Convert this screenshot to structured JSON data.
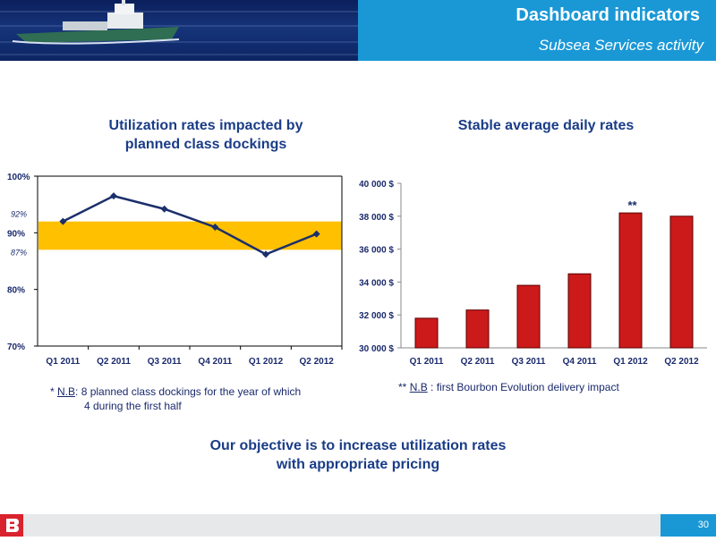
{
  "header": {
    "title": "Dashboard indicators",
    "subtitle": "Subsea Services activity"
  },
  "chart_data": [
    {
      "type": "line",
      "title": "Utilization rates impacted by planned class dockings",
      "title_lines": [
        "Utilization rates impacted by",
        "planned class dockings"
      ],
      "categories": [
        "Q1 2011",
        "Q2 2011",
        "Q3 2011",
        "Q4 2011",
        "Q1 2012",
        "Q2 2012"
      ],
      "values": [
        92,
        96.5,
        94.2,
        91,
        86.2,
        89.8
      ],
      "ylim": [
        70,
        100
      ],
      "yticks": [
        "70%",
        "80%",
        "90%",
        "100%"
      ],
      "band": {
        "low": 87,
        "high": 92,
        "low_label": "87%",
        "high_label": "92%",
        "color": "#ffc000"
      },
      "line_color": "#1b2f6b",
      "grid": false
    },
    {
      "type": "bar",
      "title": "Stable average daily rates",
      "categories": [
        "Q1 2011",
        "Q2 2011",
        "Q3 2011",
        "Q4 2011",
        "Q1 2012",
        "Q2 2012"
      ],
      "values": [
        31800,
        32300,
        33800,
        34500,
        38200,
        38000
      ],
      "ylim": [
        30000,
        40000
      ],
      "yticks": [
        "30 000 $",
        "32 000 $",
        "34 000 $",
        "36 000 $",
        "38 000 $",
        "40 000 $"
      ],
      "annotation": {
        "text": "**",
        "category": "Q1 2012"
      },
      "bar_color": "#cc1a1a",
      "grid": false
    }
  ],
  "notes": {
    "left": {
      "prefix": "* ",
      "nb": "N.B",
      "line1": ": 8 planned class dockings for the year of which",
      "line2": "4 during the first half"
    },
    "right": {
      "prefix": "** ",
      "nb": "N.B",
      "line1": " : first Bourbon Evolution delivery impact"
    }
  },
  "objective": {
    "line1": "Our objective is to increase utilization rates",
    "line2": "with appropriate pricing"
  },
  "footer": {
    "page_number": "30"
  },
  "colors": {
    "header_blue": "#1a98d6",
    "title_navy": "#1a3c87",
    "bar_red": "#cc1a1a",
    "band_yellow": "#ffc000",
    "logo_red": "#d9232e"
  }
}
